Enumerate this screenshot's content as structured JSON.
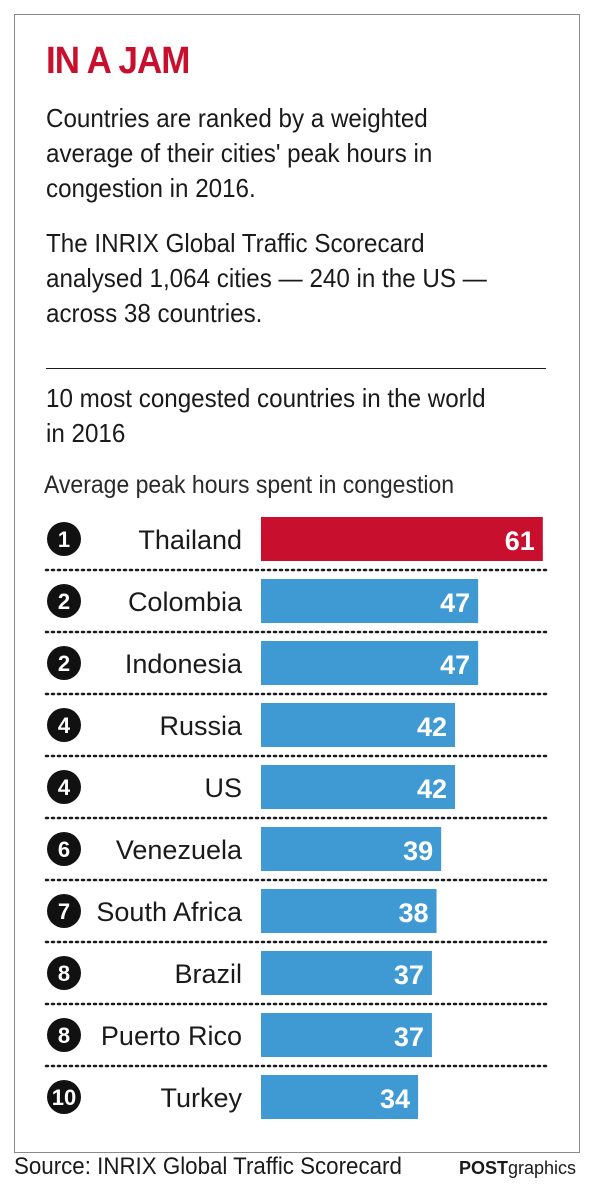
{
  "header": {
    "title": "IN A JAM",
    "intro_1": "Countries are ranked by a weighted average of their cities' peak hours in congestion in 2016.",
    "intro_2": "The INRIX Global Traffic Scorecard analysed 1,064 cities — 240 in the US — across 38 countries."
  },
  "chart_data": {
    "type": "bar",
    "orientation": "horizontal",
    "title": "10 most congested countries in the world in 2016",
    "subtitle": "Average peak hours spent in congestion",
    "categories": [
      "Thailand",
      "Colombia",
      "Indonesia",
      "Russia",
      "US",
      "Venezuela",
      "South Africa",
      "Brazil",
      "Puerto Rico",
      "Turkey"
    ],
    "ranks": [
      "1",
      "2",
      "2",
      "4",
      "4",
      "6",
      "7",
      "8",
      "8",
      "10"
    ],
    "values": [
      61,
      47,
      47,
      42,
      42,
      39,
      38,
      37,
      37,
      34
    ],
    "highlight_index": 0,
    "colors": {
      "highlight": "#c8102e",
      "bar": "#3f9ad4",
      "rank_circle": "#111111",
      "separator": "#1a1a1a"
    },
    "grid": false,
    "legend": "none"
  },
  "footer": {
    "source": "Source: INRIX Global Traffic Scorecard",
    "credit_bold": "POST",
    "credit_regular": "graphics"
  }
}
